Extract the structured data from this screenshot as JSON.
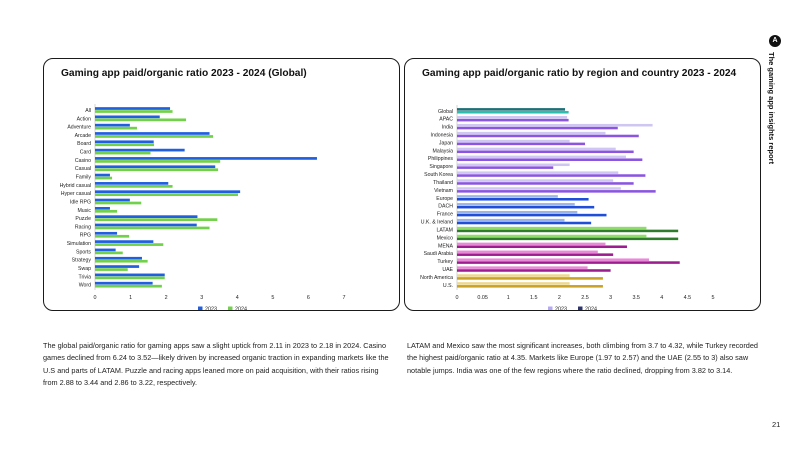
{
  "side_report_title": "The gaming app insights report",
  "page_number": "21",
  "colors": {
    "series_2023_global": "#1f5fe0",
    "series_2024_global": "#72d14a"
  },
  "left_description": "The global paid/organic ratio for gaming apps saw a slight uptick from 2.11 in 2023 to 2.18 in 2024. Casino games declined from 6.24 to 3.52—likely driven by increased organic traction in expanding markets like the U.S and parts of LATAM. Puzzle and racing apps leaned more on paid acquisition, with their ratios rising from 2.88 to 3.44 and 2.86 to 3.22, respectively.",
  "right_description": "LATAM and Mexico saw the most significant increases, both climbing from 3.7 to 4.32, while Turkey recorded the highest paid/organic ratio at 4.35. Markets like Europe (1.97 to 2.57) and the UAE (2.55 to 3) also saw notable jumps. India was one of the few regions where the ratio declined, dropping from 3.82 to 3.14.",
  "chart_data": [
    {
      "type": "bar",
      "orientation": "horizontal",
      "title": "Gaming app paid/organic ratio 2023 - 2024 (Global)",
      "categories": [
        "All",
        "Action",
        "Adventure",
        "Arcade",
        "Board",
        "Card",
        "Casino",
        "Casual",
        "Family",
        "Hybrid casual",
        "Hyper casual",
        "Idle RPG",
        "Music",
        "Puzzle",
        "Racing",
        "RPG",
        "Simulation",
        "Sports",
        "Strategy",
        "Swap",
        "Trivia",
        "Word"
      ],
      "series": [
        {
          "name": "2023",
          "color": "#1f5fe0",
          "values": [
            2.11,
            1.82,
            0.98,
            3.22,
            1.65,
            2.52,
            6.24,
            3.38,
            0.42,
            2.06,
            4.08,
            0.98,
            0.42,
            2.88,
            2.86,
            0.62,
            1.64,
            0.58,
            1.32,
            1.24,
            1.96,
            1.62
          ]
        },
        {
          "name": "2024",
          "color": "#72d14a",
          "values": [
            2.18,
            2.56,
            1.18,
            3.32,
            1.66,
            1.56,
            3.52,
            3.46,
            0.48,
            2.18,
            4.02,
            1.3,
            0.62,
            3.44,
            3.22,
            0.96,
            1.92,
            0.78,
            1.48,
            0.92,
            1.96,
            1.88
          ]
        }
      ],
      "xlim": [
        0,
        7
      ],
      "xticks": [
        "0",
        "1",
        "2",
        "3",
        "4",
        "5",
        "6",
        "7"
      ],
      "legend": "bottom",
      "grid": false
    },
    {
      "type": "bar",
      "orientation": "horizontal",
      "title": "Gaming app paid/organic ratio by region and country 2023 - 2024",
      "categories": [
        "Global",
        "APAC",
        "India",
        "Indonesia",
        "Japan",
        "Malaysia",
        "Philippines",
        "Singapore",
        "South Korea",
        "Thailand",
        "Vietnam",
        "Europe",
        "DACH",
        "France",
        "U.K. & Ireland",
        "LATAM",
        "Mexico",
        "MENA",
        "Saudi Arabia",
        "Turkey",
        "UAE",
        "North America",
        "U.S."
      ],
      "groups": [
        "global",
        "apac",
        "apac",
        "apac",
        "apac",
        "apac",
        "apac",
        "apac",
        "apac",
        "apac",
        "apac",
        "europe",
        "europe",
        "europe",
        "europe",
        "latam",
        "latam",
        "mena",
        "mena",
        "mena",
        "mena",
        "na",
        "na"
      ],
      "group_colors": {
        "global": [
          "#1f6f78",
          "#2bbfb0"
        ],
        "apac": [
          "#cfc7f2",
          "#8b55e0"
        ],
        "europe": [
          "#9ab4ea",
          "#1f4fd8"
        ],
        "latam": [
          "#8fdc6a",
          "#2f7d2c"
        ],
        "mena": [
          "#e98ad8",
          "#9b1d8e"
        ],
        "na": [
          "#efd88a",
          "#c9a227"
        ]
      },
      "series": [
        {
          "name": "2023",
          "values": [
            2.11,
            2.15,
            3.82,
            2.9,
            2.2,
            3.1,
            3.3,
            2.2,
            3.15,
            3.05,
            3.2,
            1.97,
            2.3,
            2.35,
            2.1,
            3.7,
            3.7,
            2.9,
            2.75,
            3.75,
            2.55,
            2.2,
            2.2
          ]
        },
        {
          "name": "2024",
          "values": [
            2.18,
            2.18,
            3.14,
            3.55,
            2.5,
            3.45,
            3.62,
            1.88,
            3.68,
            3.45,
            3.88,
            2.57,
            2.68,
            2.92,
            2.62,
            4.32,
            4.32,
            3.32,
            3.05,
            4.35,
            3.0,
            2.85,
            2.85
          ]
        }
      ],
      "xlim": [
        0,
        5
      ],
      "xticks": [
        "0",
        "0.05",
        "1",
        "1.5",
        "2",
        "2.5",
        "3",
        "3.5",
        "4",
        "4.5",
        "5"
      ],
      "legend": "bottom",
      "grid": false
    }
  ]
}
